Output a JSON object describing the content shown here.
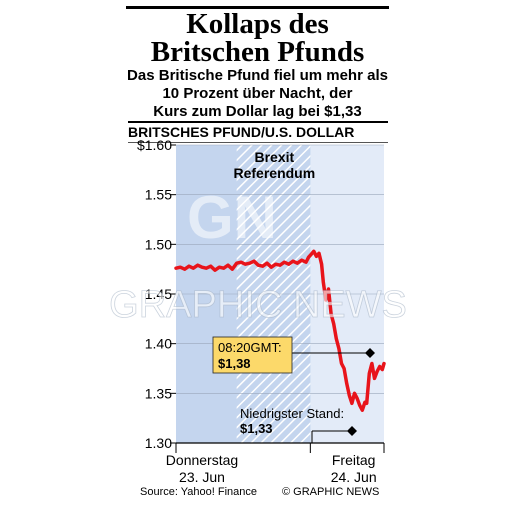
{
  "title_line1": "Kollaps des",
  "title_line2": "Britschen Pfunds",
  "subtitle_line1": "Das Britische Pfund fiel um mehr als",
  "subtitle_line2": "10 Prozent über Nacht, der",
  "subtitle_line3": "Kurs zum Dollar lag bei $1,33",
  "pair_label": "BRITSCHES PFUND/U.S. DOLLAR",
  "source": "Source: Yahoo! Finance",
  "credit": "© GRAPHIC NEWS",
  "watermark": "GRAPHIC NEWS",
  "watermark_logo": "GN",
  "colors": {
    "line": "#e8141b",
    "band": "#c4d5ee",
    "callout": "#fcd96a",
    "panel": "#e3ebf8"
  },
  "chart_data": {
    "type": "line",
    "ylim": [
      1.3,
      1.6
    ],
    "y_ticks": [
      "$1.60",
      "1.55",
      "1.50",
      "1.45",
      "1.40",
      "1.35",
      "1.30"
    ],
    "y_tick_values": [
      1.6,
      1.55,
      1.5,
      1.45,
      1.4,
      1.35,
      1.3
    ],
    "x_axis": {
      "range_hours": [
        0,
        24
      ],
      "labels": [
        {
          "day": "Donnerstag",
          "date": "23. Jun",
          "at": 3
        },
        {
          "day": "Freitag",
          "date": "24. Jun",
          "at": 20.5
        }
      ]
    },
    "shaded_band_hours": [
      0,
      15.5
    ],
    "hatched_band_hours": [
      7,
      15.5
    ],
    "event": {
      "label_line1": "Brexit",
      "label_line2": "Referendum",
      "at": 15.5
    },
    "annotations": [
      {
        "time_label": "08:20GMT:",
        "value_label": "$1,38",
        "value": 1.38,
        "at": 23.5
      },
      {
        "label": "Niedrigster Stand:",
        "value_label": "$1,33",
        "value": 1.33,
        "at": 22
      }
    ],
    "series": [
      {
        "x": [
          0,
          0.5,
          1,
          1.5,
          2,
          2.5,
          3,
          3.5,
          4,
          4.5,
          5,
          5.5,
          6,
          6.5,
          7,
          7.5,
          8,
          8.5,
          9,
          9.5,
          10,
          10.5,
          11,
          11.5,
          12,
          12.5,
          13,
          13.5,
          14,
          14.5,
          15,
          15.3,
          15.6,
          15.9,
          16.2,
          16.5,
          16.8,
          17,
          17.3,
          17.6,
          17.9,
          18.2,
          18.5,
          18.8,
          19.1,
          19.4,
          19.7,
          20,
          20.3,
          20.6,
          20.9,
          21.2,
          21.5,
          21.8,
          22,
          22.3,
          22.6,
          22.9,
          23.2,
          23.5,
          23.8,
          24
        ],
        "y": [
          1.476,
          1.477,
          1.475,
          1.478,
          1.476,
          1.479,
          1.477,
          1.476,
          1.478,
          1.474,
          1.477,
          1.476,
          1.479,
          1.475,
          1.481,
          1.482,
          1.48,
          1.481,
          1.483,
          1.479,
          1.478,
          1.481,
          1.477,
          1.48,
          1.479,
          1.482,
          1.48,
          1.483,
          1.481,
          1.484,
          1.482,
          1.487,
          1.49,
          1.493,
          1.488,
          1.491,
          1.48,
          1.462,
          1.444,
          1.455,
          1.43,
          1.42,
          1.405,
          1.395,
          1.38,
          1.375,
          1.36,
          1.348,
          1.34,
          1.35,
          1.345,
          1.338,
          1.333,
          1.341,
          1.34,
          1.37,
          1.38,
          1.365,
          1.372,
          1.377,
          1.374,
          1.38
        ]
      }
    ]
  }
}
